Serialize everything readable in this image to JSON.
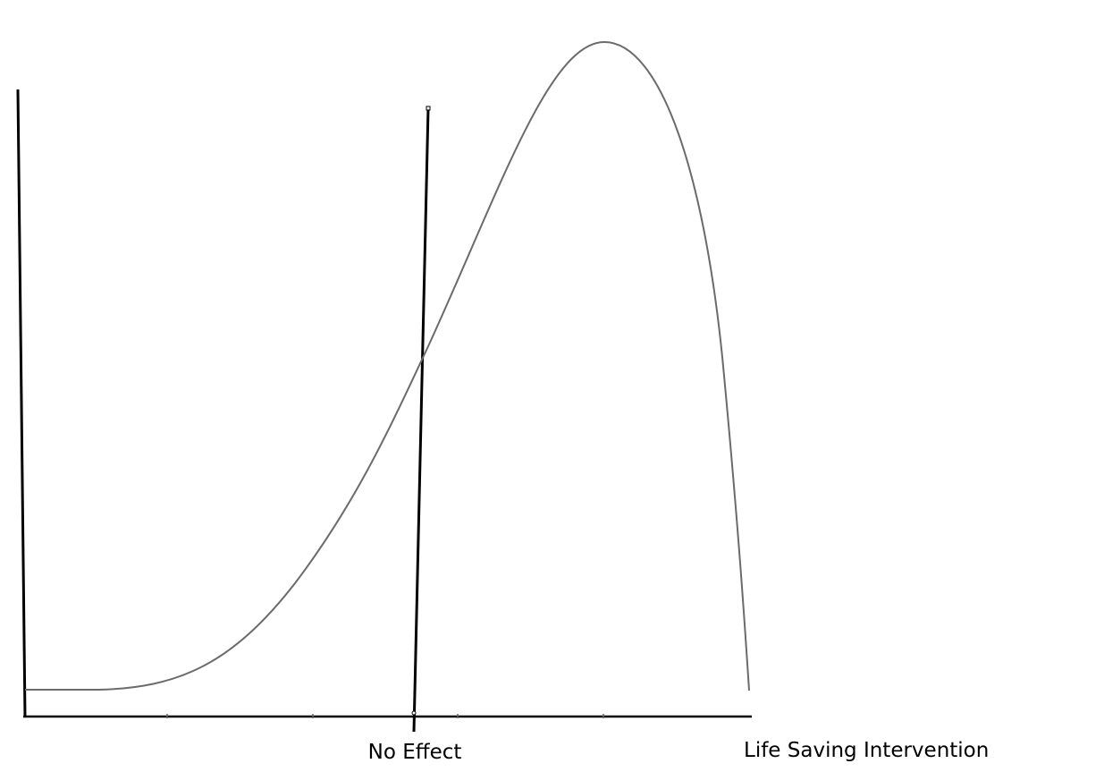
{
  "axis_labels": {
    "middle": "No Effect",
    "right": "Life Saving Intervention"
  }
}
